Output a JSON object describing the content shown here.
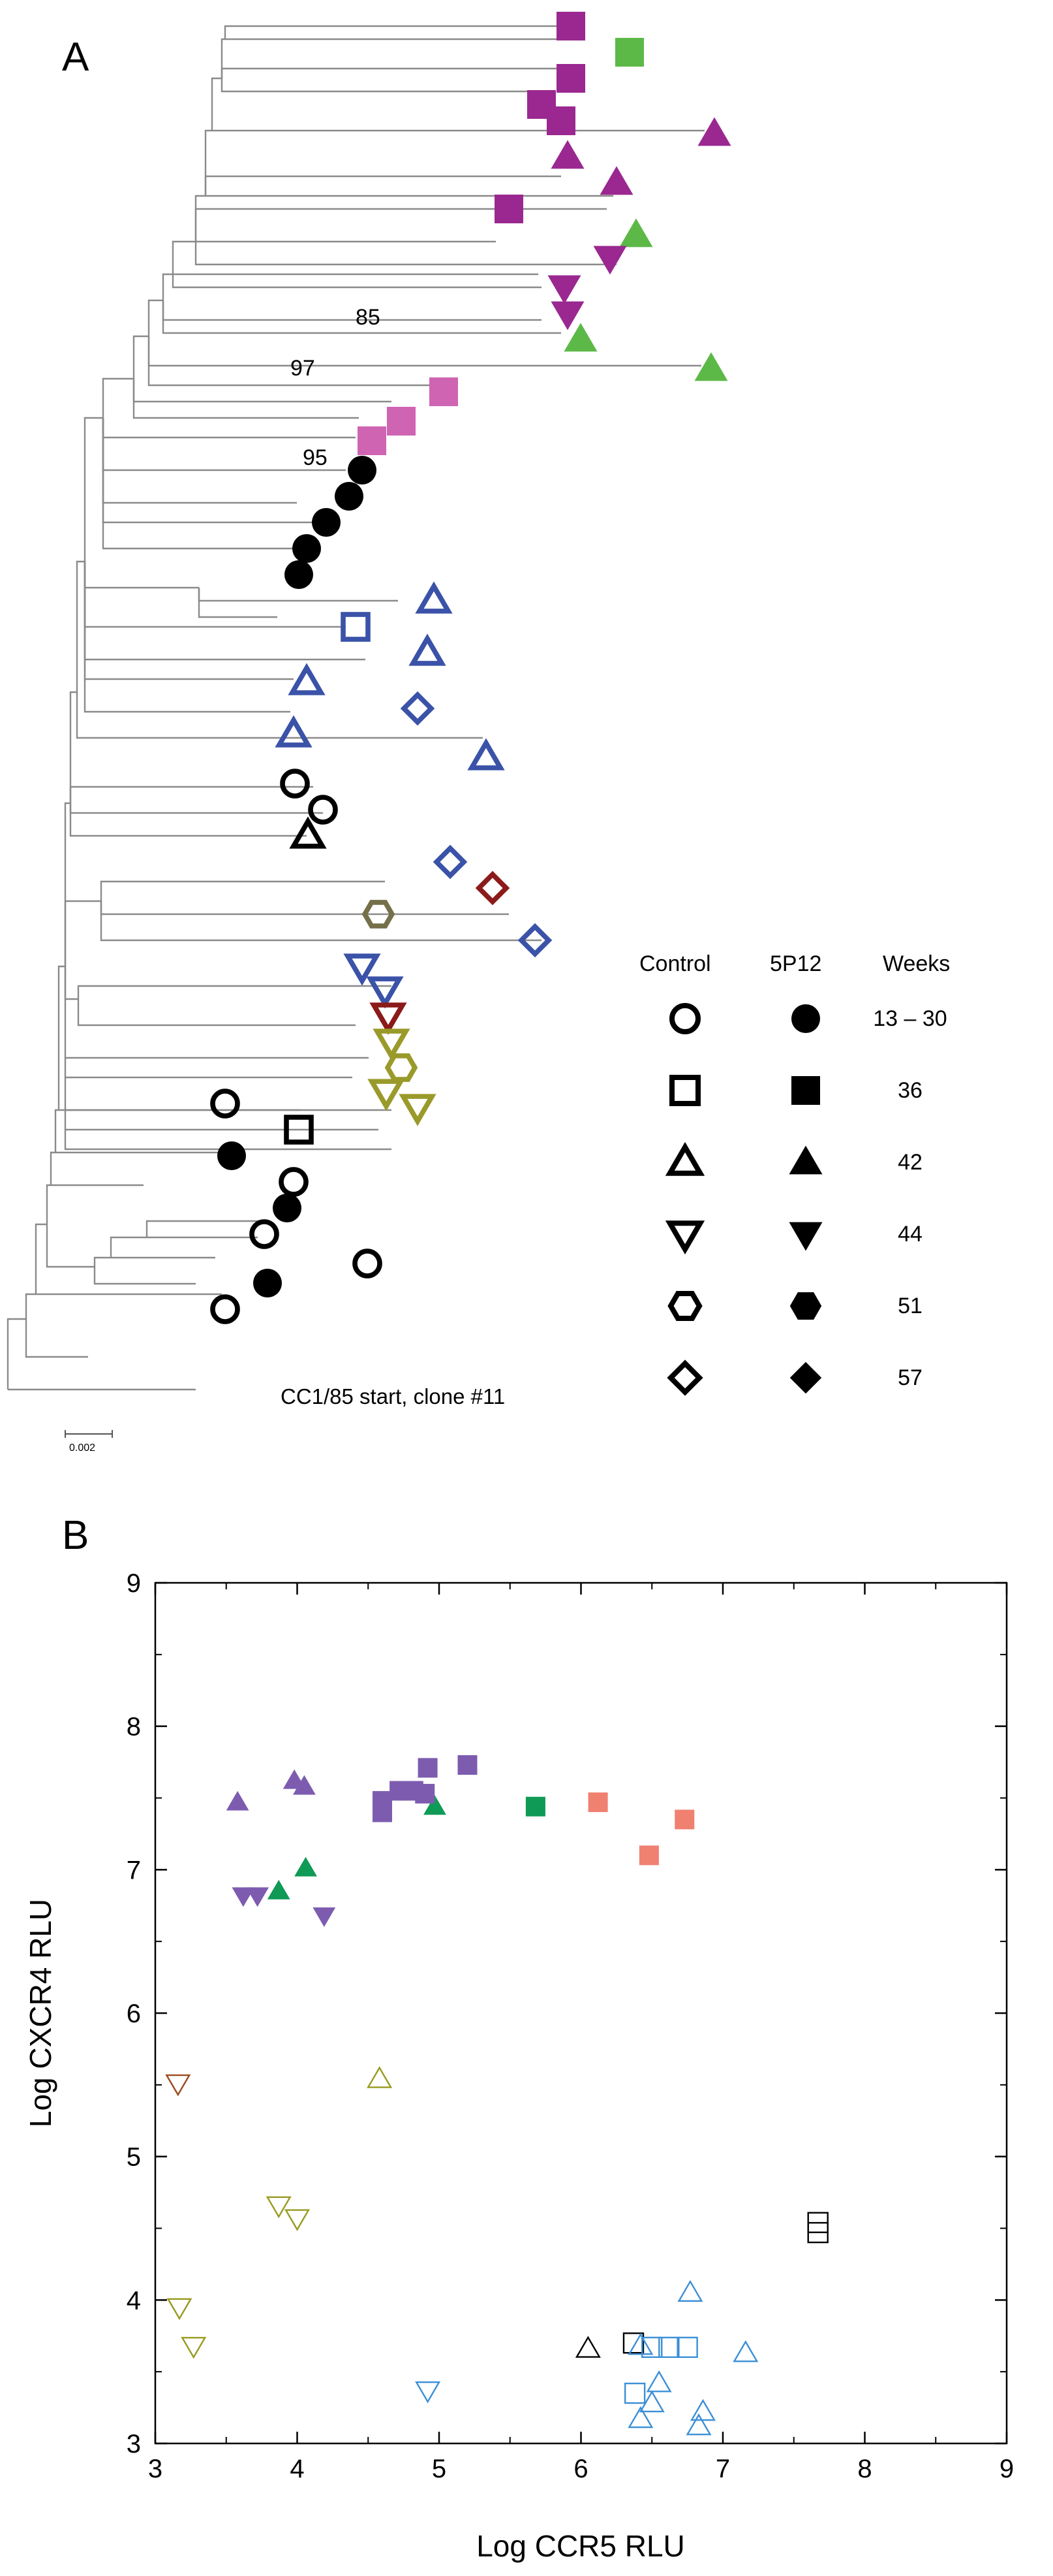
{
  "panel_a": {
    "label": "A",
    "bootstrap_labels": [
      "85",
      "97",
      "95"
    ],
    "root_label": "CC1/85 start, clone #11",
    "scale_bar_label": "0.002",
    "legend": {
      "headers": {
        "control": "Control",
        "treatment": "5P12",
        "weeks": "Weeks"
      },
      "rows": [
        {
          "shape": "circle",
          "weeks": "13 – 30"
        },
        {
          "shape": "square",
          "weeks": "36"
        },
        {
          "shape": "triangle-up",
          "weeks": "42"
        },
        {
          "shape": "triangle-down",
          "weeks": "44"
        },
        {
          "shape": "hexagon",
          "weeks": "51"
        },
        {
          "shape": "diamond",
          "weeks": "57"
        }
      ]
    }
  },
  "panel_b": {
    "label": "B"
  },
  "colors": {
    "magenta": "#9a2890",
    "green": "#5cb947",
    "pink": "#cf64b3",
    "black": "#000000",
    "blue": "#3a52a8",
    "darkred": "#8b1a1a",
    "olive": "#9a9a2b",
    "hexgrey": "#75704a",
    "purple": "#7d5cb0",
    "darkgreen": "#0f9a56",
    "salmon": "#f08070",
    "lightblue": "#3b8fd6",
    "brown": "#9b4a1e",
    "olive_b": "#989a1e"
  },
  "chart_data": {
    "type": "scatter",
    "xlabel": "Log CCR5 RLU",
    "ylabel": "Log CXCR4 RLU",
    "xlim": [
      3,
      9
    ],
    "ylim": [
      3,
      9
    ],
    "xticks": [
      3,
      4,
      5,
      6,
      7,
      8,
      9
    ],
    "yticks": [
      3,
      4,
      5,
      6,
      7,
      8,
      9
    ],
    "points": [
      {
        "x": 3.58,
        "y": 7.47,
        "shape": "triangle-up",
        "filled": true,
        "color": "purple"
      },
      {
        "x": 3.98,
        "y": 7.62,
        "shape": "triangle-up",
        "filled": true,
        "color": "purple"
      },
      {
        "x": 4.05,
        "y": 7.58,
        "shape": "triangle-up",
        "filled": true,
        "color": "purple"
      },
      {
        "x": 3.62,
        "y": 6.82,
        "shape": "triangle-down",
        "filled": true,
        "color": "purple"
      },
      {
        "x": 3.72,
        "y": 6.82,
        "shape": "triangle-down",
        "filled": true,
        "color": "purple"
      },
      {
        "x": 4.19,
        "y": 6.68,
        "shape": "triangle-down",
        "filled": true,
        "color": "purple"
      },
      {
        "x": 3.87,
        "y": 6.85,
        "shape": "triangle-up",
        "filled": true,
        "color": "darkgreen"
      },
      {
        "x": 4.06,
        "y": 7.01,
        "shape": "triangle-up",
        "filled": true,
        "color": "darkgreen"
      },
      {
        "x": 4.97,
        "y": 7.44,
        "shape": "triangle-up",
        "filled": true,
        "color": "darkgreen"
      },
      {
        "x": 4.6,
        "y": 7.4,
        "shape": "square",
        "filled": true,
        "color": "purple"
      },
      {
        "x": 4.6,
        "y": 7.48,
        "shape": "square",
        "filled": true,
        "color": "purple"
      },
      {
        "x": 4.72,
        "y": 7.55,
        "shape": "square",
        "filled": true,
        "color": "purple"
      },
      {
        "x": 4.82,
        "y": 7.55,
        "shape": "square",
        "filled": true,
        "color": "purple"
      },
      {
        "x": 4.9,
        "y": 7.53,
        "shape": "square",
        "filled": true,
        "color": "purple"
      },
      {
        "x": 4.92,
        "y": 7.71,
        "shape": "square",
        "filled": true,
        "color": "purple"
      },
      {
        "x": 5.2,
        "y": 7.73,
        "shape": "square",
        "filled": true,
        "color": "purple"
      },
      {
        "x": 5.68,
        "y": 7.44,
        "shape": "square",
        "filled": true,
        "color": "darkgreen"
      },
      {
        "x": 6.12,
        "y": 7.47,
        "shape": "square",
        "filled": true,
        "color": "salmon"
      },
      {
        "x": 6.48,
        "y": 7.1,
        "shape": "square",
        "filled": true,
        "color": "salmon"
      },
      {
        "x": 6.73,
        "y": 7.35,
        "shape": "square",
        "filled": true,
        "color": "salmon"
      },
      {
        "x": 3.16,
        "y": 5.51,
        "shape": "triangle-down",
        "filled": false,
        "color": "brown"
      },
      {
        "x": 4.58,
        "y": 5.54,
        "shape": "triangle-up",
        "filled": false,
        "color": "olive_b"
      },
      {
        "x": 3.87,
        "y": 4.66,
        "shape": "triangle-down",
        "filled": false,
        "color": "olive_b"
      },
      {
        "x": 4.0,
        "y": 4.57,
        "shape": "triangle-down",
        "filled": false,
        "color": "olive_b"
      },
      {
        "x": 3.17,
        "y": 3.95,
        "shape": "triangle-down",
        "filled": false,
        "color": "olive_b"
      },
      {
        "x": 3.27,
        "y": 3.68,
        "shape": "triangle-down",
        "filled": false,
        "color": "olive_b"
      },
      {
        "x": 4.92,
        "y": 3.37,
        "shape": "triangle-down",
        "filled": false,
        "color": "lightblue"
      },
      {
        "x": 6.05,
        "y": 3.66,
        "shape": "triangle-up",
        "filled": false,
        "color": "black"
      },
      {
        "x": 6.37,
        "y": 3.7,
        "shape": "square",
        "filled": false,
        "color": "black"
      },
      {
        "x": 7.67,
        "y": 4.54,
        "shape": "square",
        "filled": false,
        "color": "black"
      },
      {
        "x": 7.67,
        "y": 4.47,
        "shape": "square",
        "filled": false,
        "color": "black"
      },
      {
        "x": 6.38,
        "y": 3.35,
        "shape": "square",
        "filled": false,
        "color": "lightblue"
      },
      {
        "x": 6.5,
        "y": 3.67,
        "shape": "square",
        "filled": false,
        "color": "lightblue"
      },
      {
        "x": 6.62,
        "y": 3.67,
        "shape": "square",
        "filled": false,
        "color": "lightblue"
      },
      {
        "x": 6.75,
        "y": 3.67,
        "shape": "square",
        "filled": false,
        "color": "lightblue"
      },
      {
        "x": 6.42,
        "y": 3.68,
        "shape": "triangle-up",
        "filled": false,
        "color": "lightblue"
      },
      {
        "x": 6.77,
        "y": 4.05,
        "shape": "triangle-up",
        "filled": false,
        "color": "lightblue"
      },
      {
        "x": 7.16,
        "y": 3.63,
        "shape": "triangle-up",
        "filled": false,
        "color": "lightblue"
      },
      {
        "x": 6.55,
        "y": 3.42,
        "shape": "triangle-up",
        "filled": false,
        "color": "lightblue"
      },
      {
        "x": 6.5,
        "y": 3.28,
        "shape": "triangle-up",
        "filled": false,
        "color": "lightblue"
      },
      {
        "x": 6.42,
        "y": 3.17,
        "shape": "triangle-up",
        "filled": false,
        "color": "lightblue"
      },
      {
        "x": 6.86,
        "y": 3.22,
        "shape": "triangle-up",
        "filled": false,
        "color": "lightblue"
      },
      {
        "x": 6.83,
        "y": 3.12,
        "shape": "triangle-up",
        "filled": false,
        "color": "lightblue"
      }
    ]
  }
}
